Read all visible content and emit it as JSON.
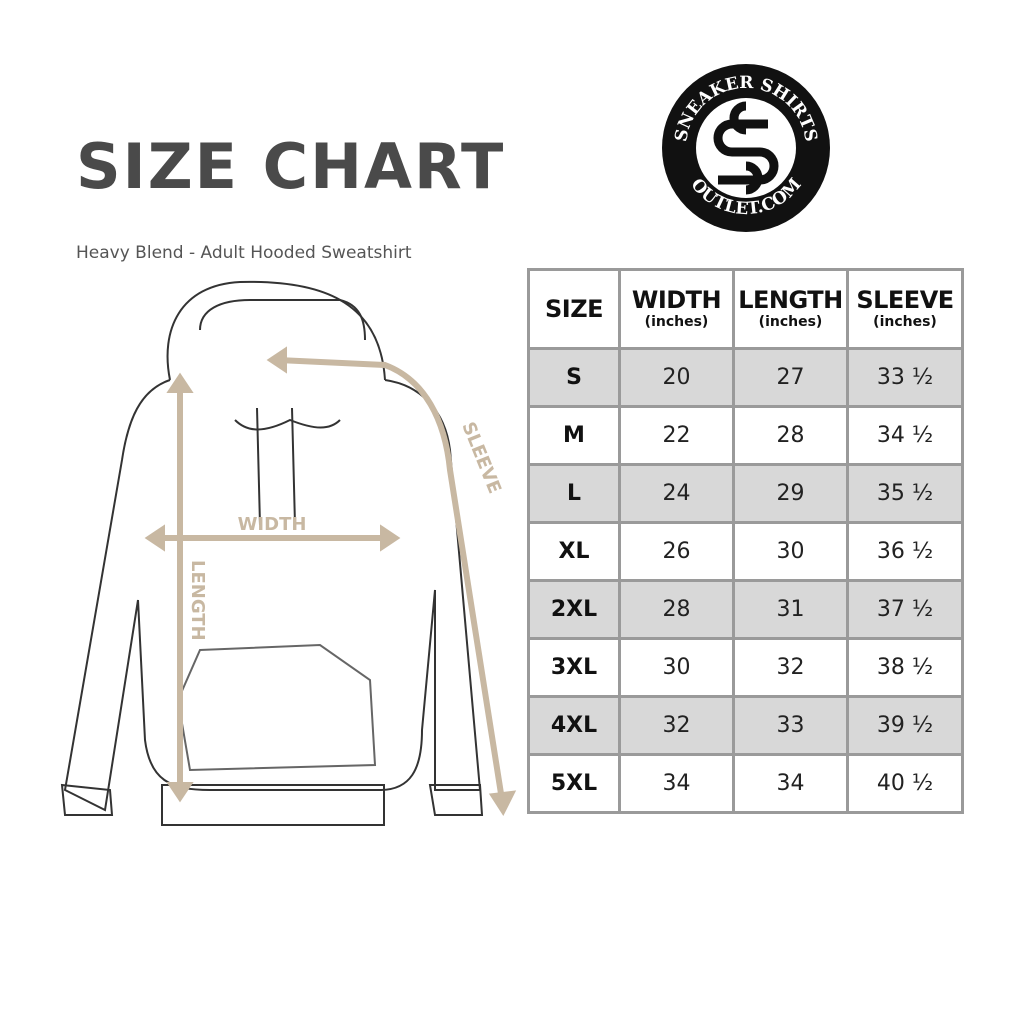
{
  "title": "SIZE CHART",
  "subtitle": "Heavy Blend - Adult Hooded Sweatshirt",
  "logo": {
    "top_text": "SNEAKER SHIRTS",
    "bottom_text": "OUTLET.COM",
    "monogram": "SS"
  },
  "diagram": {
    "width_label": "WIDTH",
    "length_label": "LENGTH",
    "sleeve_label": "SLEEVE",
    "accent_color": "#c8b8a2"
  },
  "table": {
    "headers": [
      {
        "label": "SIZE",
        "unit": ""
      },
      {
        "label": "WIDTH",
        "unit": "(inches)"
      },
      {
        "label": "LENGTH",
        "unit": "(inches)"
      },
      {
        "label": "SLEEVE",
        "unit": "(inches)"
      }
    ],
    "rows": [
      [
        "S",
        "20",
        "27",
        "33 ½"
      ],
      [
        "M",
        "22",
        "28",
        "34 ½"
      ],
      [
        "L",
        "24",
        "29",
        "35 ½"
      ],
      [
        "XL",
        "26",
        "30",
        "36 ½"
      ],
      [
        "2XL",
        "28",
        "31",
        "37 ½"
      ],
      [
        "3XL",
        "30",
        "32",
        "38 ½"
      ],
      [
        "4XL",
        "32",
        "33",
        "39 ½"
      ],
      [
        "5XL",
        "34",
        "34",
        "40 ½"
      ]
    ],
    "shade_color": "#d8d8d8"
  }
}
